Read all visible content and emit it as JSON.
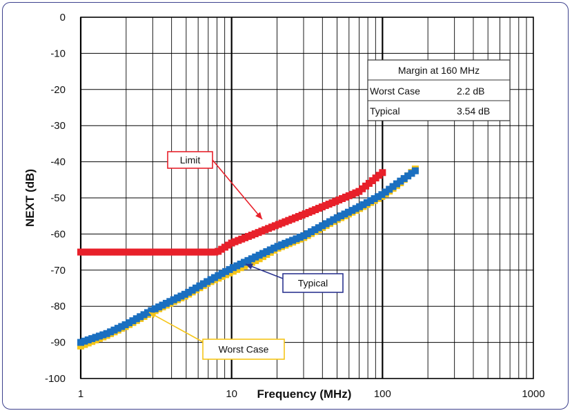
{
  "chart_data": {
    "type": "line",
    "title": "",
    "xlabel": "Frequency (MHz)",
    "ylabel": "NEXT (dB)",
    "x_scale": "log",
    "xlim": [
      1,
      1000
    ],
    "ylim": [
      -100,
      0
    ],
    "x_ticks": [
      1,
      10,
      100,
      1000
    ],
    "x_tick_labels": [
      "1",
      "10",
      "100",
      "1000"
    ],
    "y_ticks": [
      0,
      -10,
      -20,
      -30,
      -40,
      -50,
      -60,
      -70,
      -80,
      -90,
      -100
    ],
    "y_tick_labels": [
      "0",
      "-10",
      "-20",
      "-30",
      "-40",
      "-50",
      "-60",
      "-70",
      "-80",
      "-90",
      "-100"
    ],
    "grid": true,
    "series": [
      {
        "name": "Limit",
        "color": "#e8202a",
        "x": [
          1,
          2,
          4,
          8,
          10,
          15,
          20,
          30,
          50,
          70,
          100
        ],
        "y": [
          -65,
          -65,
          -65,
          -65,
          -62.5,
          -59.6,
          -57.5,
          -54.6,
          -50.8,
          -48.2,
          -43
        ]
      },
      {
        "name": "Worst Case",
        "color": "#f5c518",
        "x": [
          1,
          1.5,
          2,
          3,
          5,
          7,
          10,
          15,
          20,
          30,
          50,
          70,
          100,
          130,
          165
        ],
        "y": [
          -91,
          -88,
          -85.5,
          -81.5,
          -77,
          -73.5,
          -70.5,
          -67,
          -64,
          -61,
          -56,
          -53,
          -49.5,
          -46,
          -42
        ]
      },
      {
        "name": "Typical",
        "color": "#1a6fc0",
        "x": [
          1,
          1.5,
          2,
          3,
          5,
          7,
          10,
          15,
          20,
          30,
          50,
          70,
          100,
          130,
          165
        ],
        "y": [
          -90,
          -87.5,
          -85,
          -81,
          -76.5,
          -73,
          -69.5,
          -66,
          -63.5,
          -60.5,
          -55.5,
          -52.5,
          -49,
          -45.5,
          -42.5
        ]
      }
    ],
    "annotations": [
      {
        "label": "Limit",
        "border_color": "#e8202a",
        "arrow_color": "#e8202a"
      },
      {
        "label": "Typical",
        "border_color": "#2c3590",
        "arrow_color": "#2c3590"
      },
      {
        "label": "Worst Case",
        "border_color": "#f5c518",
        "arrow_color": "#f5c518"
      }
    ],
    "margin_table": {
      "title": "Margin at 160 MHz",
      "rows": [
        {
          "label": "Worst Case",
          "value": "2.2 dB"
        },
        {
          "label": "Typical",
          "value": "3.54 dB"
        }
      ]
    }
  }
}
